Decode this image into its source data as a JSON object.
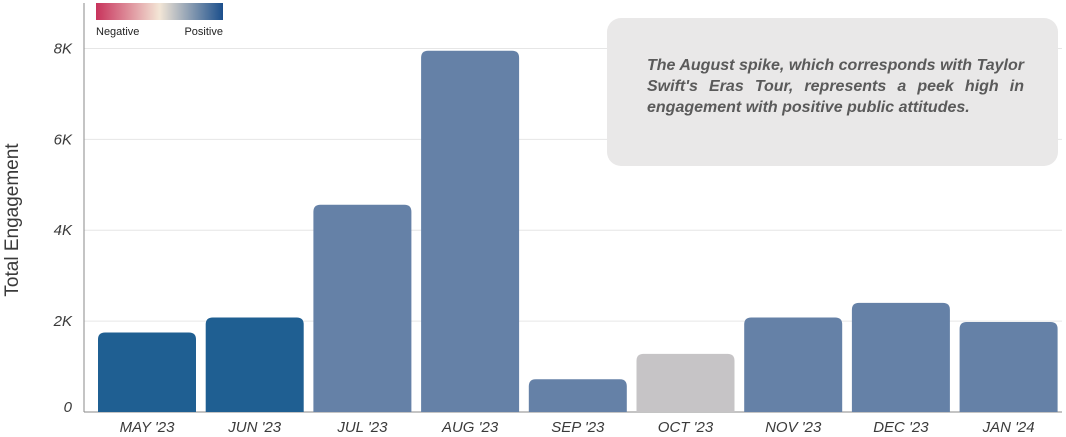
{
  "chart_data": {
    "type": "bar",
    "categories": [
      "MAY '23",
      "JUN '23",
      "JUL '23",
      "AUG '23",
      "SEP '23",
      "OCT '23",
      "NOV '23",
      "DEC '23",
      "JAN '24"
    ],
    "values": [
      1750,
      2080,
      4560,
      7950,
      720,
      1280,
      2080,
      2400,
      1980
    ],
    "sentiment": [
      "positive",
      "positive",
      "mixed-positive",
      "mixed-positive",
      "mixed-positive",
      "neutral",
      "mixed-positive",
      "mixed-positive",
      "mixed-positive"
    ],
    "bar_colors": [
      "#1f5f92",
      "#1f5f92",
      "#6581a7",
      "#6581a7",
      "#6581a7",
      "#c6c4c6",
      "#6581a7",
      "#6581a7",
      "#6581a7"
    ],
    "ylabel": "Total Engagement",
    "ylim": [
      0,
      9000
    ],
    "yticks": [
      0,
      2000,
      4000,
      6000,
      8000
    ],
    "ytick_labels": [
      "0",
      "2K",
      "4K",
      "6K",
      "8K"
    ],
    "grid": true,
    "legend": {
      "type": "color-scale",
      "placement": "top-left",
      "colors": [
        "#c8335c",
        "#f3e6d6",
        "#1b4f8c"
      ],
      "left_label": "Negative",
      "right_label": "Positive"
    },
    "annotation": "The August spike, which corresponds with Taylor Swift's Eras Tour, represents a peek high in engagement with positive public attitudes."
  }
}
